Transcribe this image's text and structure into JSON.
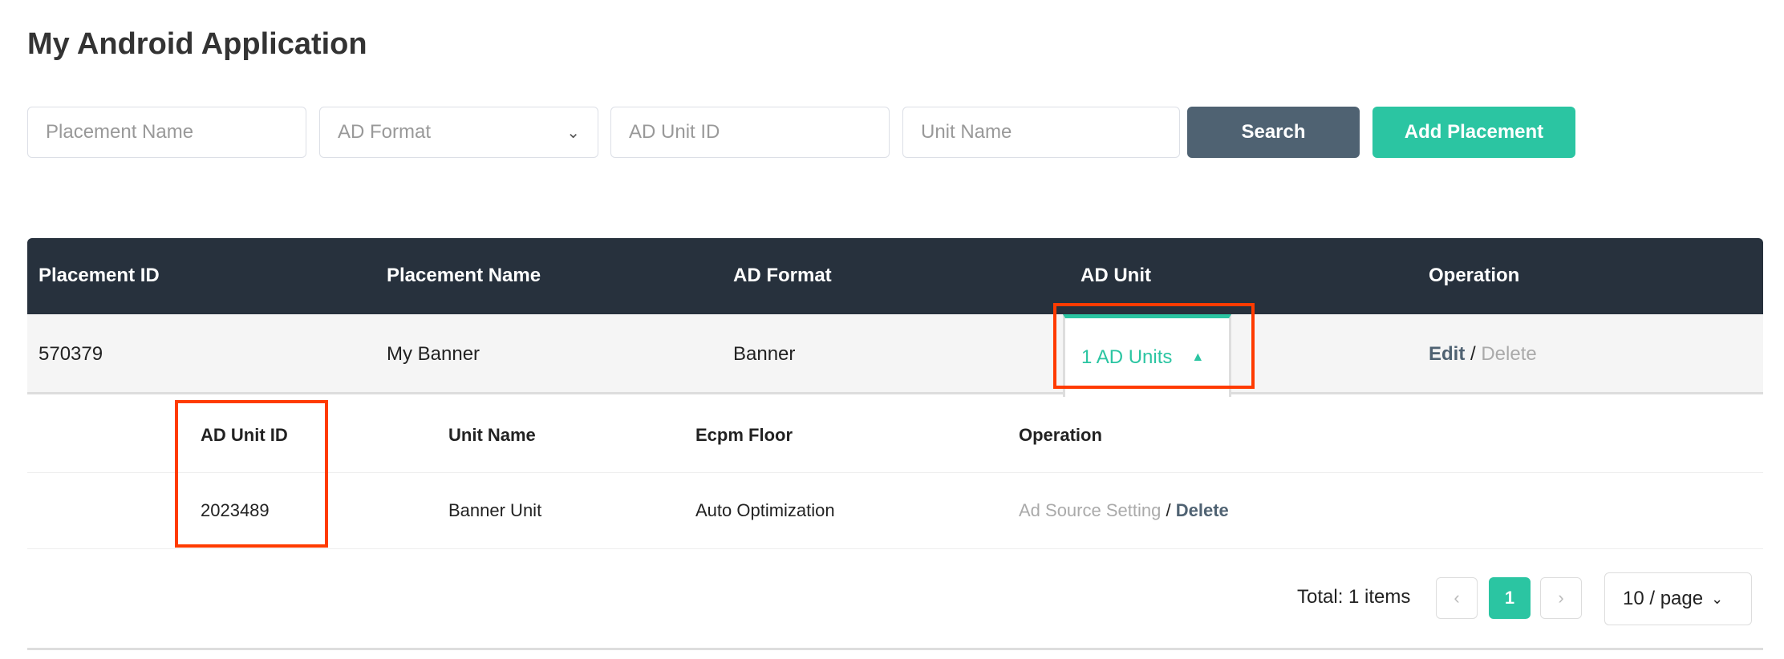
{
  "title": "My Android Application",
  "filters": {
    "placement_name": "Placement Name",
    "ad_format": "AD Format",
    "ad_unit_id": "AD Unit ID",
    "unit_name": "Unit Name",
    "search": "Search",
    "add": "Add Placement"
  },
  "table": {
    "headers": [
      "Placement ID",
      "Placement Name",
      "AD Format",
      "AD Unit",
      "Operation"
    ],
    "row": {
      "id": "570379",
      "name": "My Banner",
      "format": "Banner",
      "ad_units": "1 AD Units",
      "edit": "Edit",
      "sep": "/",
      "delete": "Delete"
    }
  },
  "subtable": {
    "headers": [
      "AD Unit ID",
      "Unit Name",
      "Ecpm Floor",
      "Operation"
    ],
    "row": {
      "id": "2023489",
      "name": "Banner Unit",
      "floor": "Auto Optimization",
      "setting": "Ad Source Setting",
      "sep": "/",
      "delete": "Delete"
    }
  },
  "pagination": {
    "total": "Total: 1 items",
    "page": "1",
    "page_size": "10 / page"
  },
  "colors": {
    "accent": "#2bc5a2",
    "header": "#27313d",
    "search": "#4f6272",
    "highlight": "#ff3b00"
  }
}
